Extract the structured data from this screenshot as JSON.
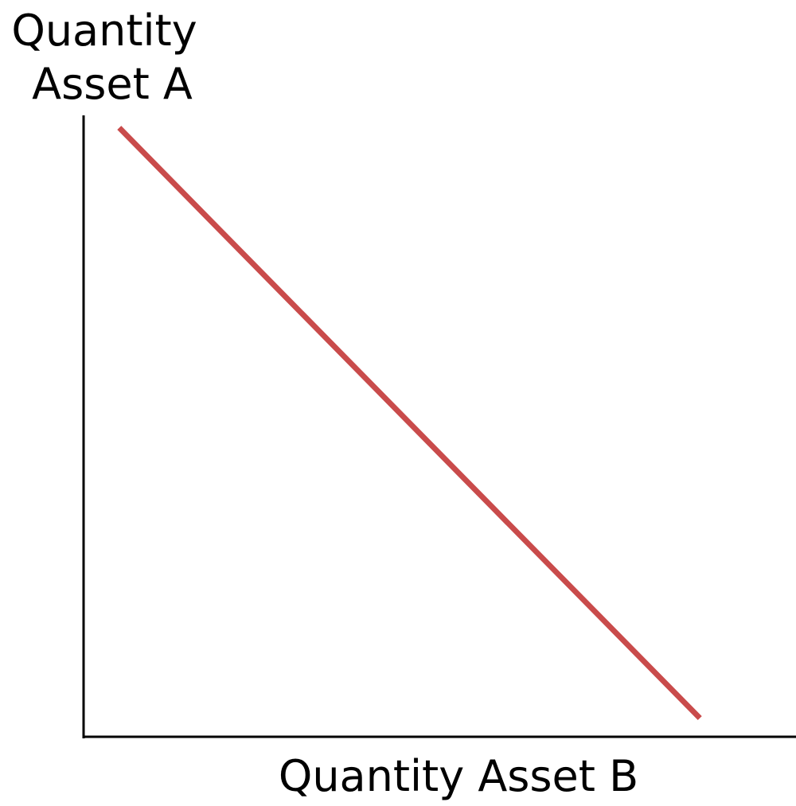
{
  "chart_data": {
    "type": "line",
    "title": "",
    "xlabel": "Quantity Asset B",
    "ylabel_lines": [
      "Quantity",
      "Asset A"
    ],
    "grid": false,
    "legend": "none",
    "ticks": "none",
    "xlim": [
      0,
      100
    ],
    "ylim": [
      0,
      100
    ],
    "series": [
      {
        "x": [
          5,
          86.5
        ],
        "y": [
          98,
          3
        ],
        "color": "#c94b4b"
      }
    ],
    "axis_color": "#000000"
  }
}
